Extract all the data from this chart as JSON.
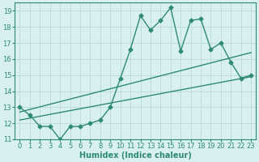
{
  "title": "",
  "xlabel": "Humidex (Indice chaleur)",
  "xlim": [
    -0.5,
    23.5
  ],
  "ylim": [
    11,
    19.5
  ],
  "yticks": [
    11,
    12,
    13,
    14,
    15,
    16,
    17,
    18,
    19
  ],
  "xticks": [
    0,
    1,
    2,
    3,
    4,
    5,
    6,
    7,
    8,
    9,
    10,
    11,
    12,
    13,
    14,
    15,
    16,
    17,
    18,
    19,
    20,
    21,
    22,
    23
  ],
  "main_x": [
    0,
    1,
    2,
    3,
    4,
    5,
    6,
    7,
    8,
    9,
    10,
    11,
    12,
    13,
    14,
    15,
    16,
    17,
    18,
    19,
    20,
    21,
    22,
    23
  ],
  "main_y": [
    13,
    12.5,
    11.8,
    11.8,
    11.0,
    11.8,
    11.8,
    12.0,
    12.2,
    13.0,
    14.8,
    16.6,
    18.7,
    17.8,
    18.4,
    19.2,
    16.5,
    18.4,
    18.5,
    16.6,
    17.0,
    15.8,
    14.8,
    15.0
  ],
  "line1_x": [
    0,
    23
  ],
  "line1_y": [
    12.2,
    14.9
  ],
  "line2_x": [
    0,
    23
  ],
  "line2_y": [
    12.7,
    16.4
  ],
  "line_color": "#2e8b72",
  "bg_color": "#d8f0ee",
  "grid_color": "#b8dbd8",
  "tick_fontsize": 6,
  "label_fontsize": 7,
  "marker": "D",
  "marker_size": 2.5,
  "linewidth": 1.0
}
